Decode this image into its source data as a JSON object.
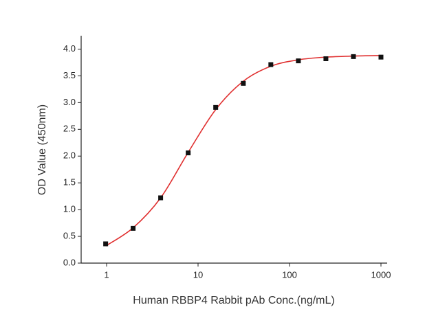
{
  "chart_data": {
    "type": "scatter",
    "x_label": "Human RBBP4 Rabbit pAb Conc.(ng/mL)",
    "y_label": "OD Value (450nm)",
    "xscale": "log",
    "xlim": [
      0.527,
      1169
    ],
    "xticks": [
      1,
      10,
      100,
      1000
    ],
    "ylim": [
      0,
      4.25
    ],
    "yticks": [
      {
        "value": 0,
        "label": "0.0"
      },
      {
        "value": 0.5,
        "label": "0.5"
      },
      {
        "value": 1,
        "label": "1.0"
      },
      {
        "value": 1.5,
        "label": "1.5"
      },
      {
        "value": 2,
        "label": "2.0"
      },
      {
        "value": 2.5,
        "label": "2.5"
      },
      {
        "value": 3,
        "label": "3.0"
      },
      {
        "value": 3.5,
        "label": "3.5"
      },
      {
        "value": 4,
        "label": "4.0"
      }
    ],
    "series": [
      {
        "mode": "markers",
        "color": "#111111",
        "x": [
          0.977,
          1.95,
          3.9,
          7.8,
          15.6,
          31.25,
          62.5,
          125,
          250,
          500,
          1000
        ],
        "values": [
          0.36,
          0.65,
          1.22,
          2.06,
          2.91,
          3.36,
          3.71,
          3.78,
          3.82,
          3.86,
          3.85
        ]
      },
      {
        "mode": "line",
        "color": "#e03030",
        "x": [
          0.977,
          1.95,
          3.9,
          7.8,
          15.6,
          31.25,
          62.5,
          125,
          250,
          500,
          1000
        ],
        "values": [
          0.32,
          0.66,
          1.22,
          2.07,
          2.87,
          3.4,
          3.68,
          3.8,
          3.85,
          3.87,
          3.88
        ]
      }
    ]
  }
}
